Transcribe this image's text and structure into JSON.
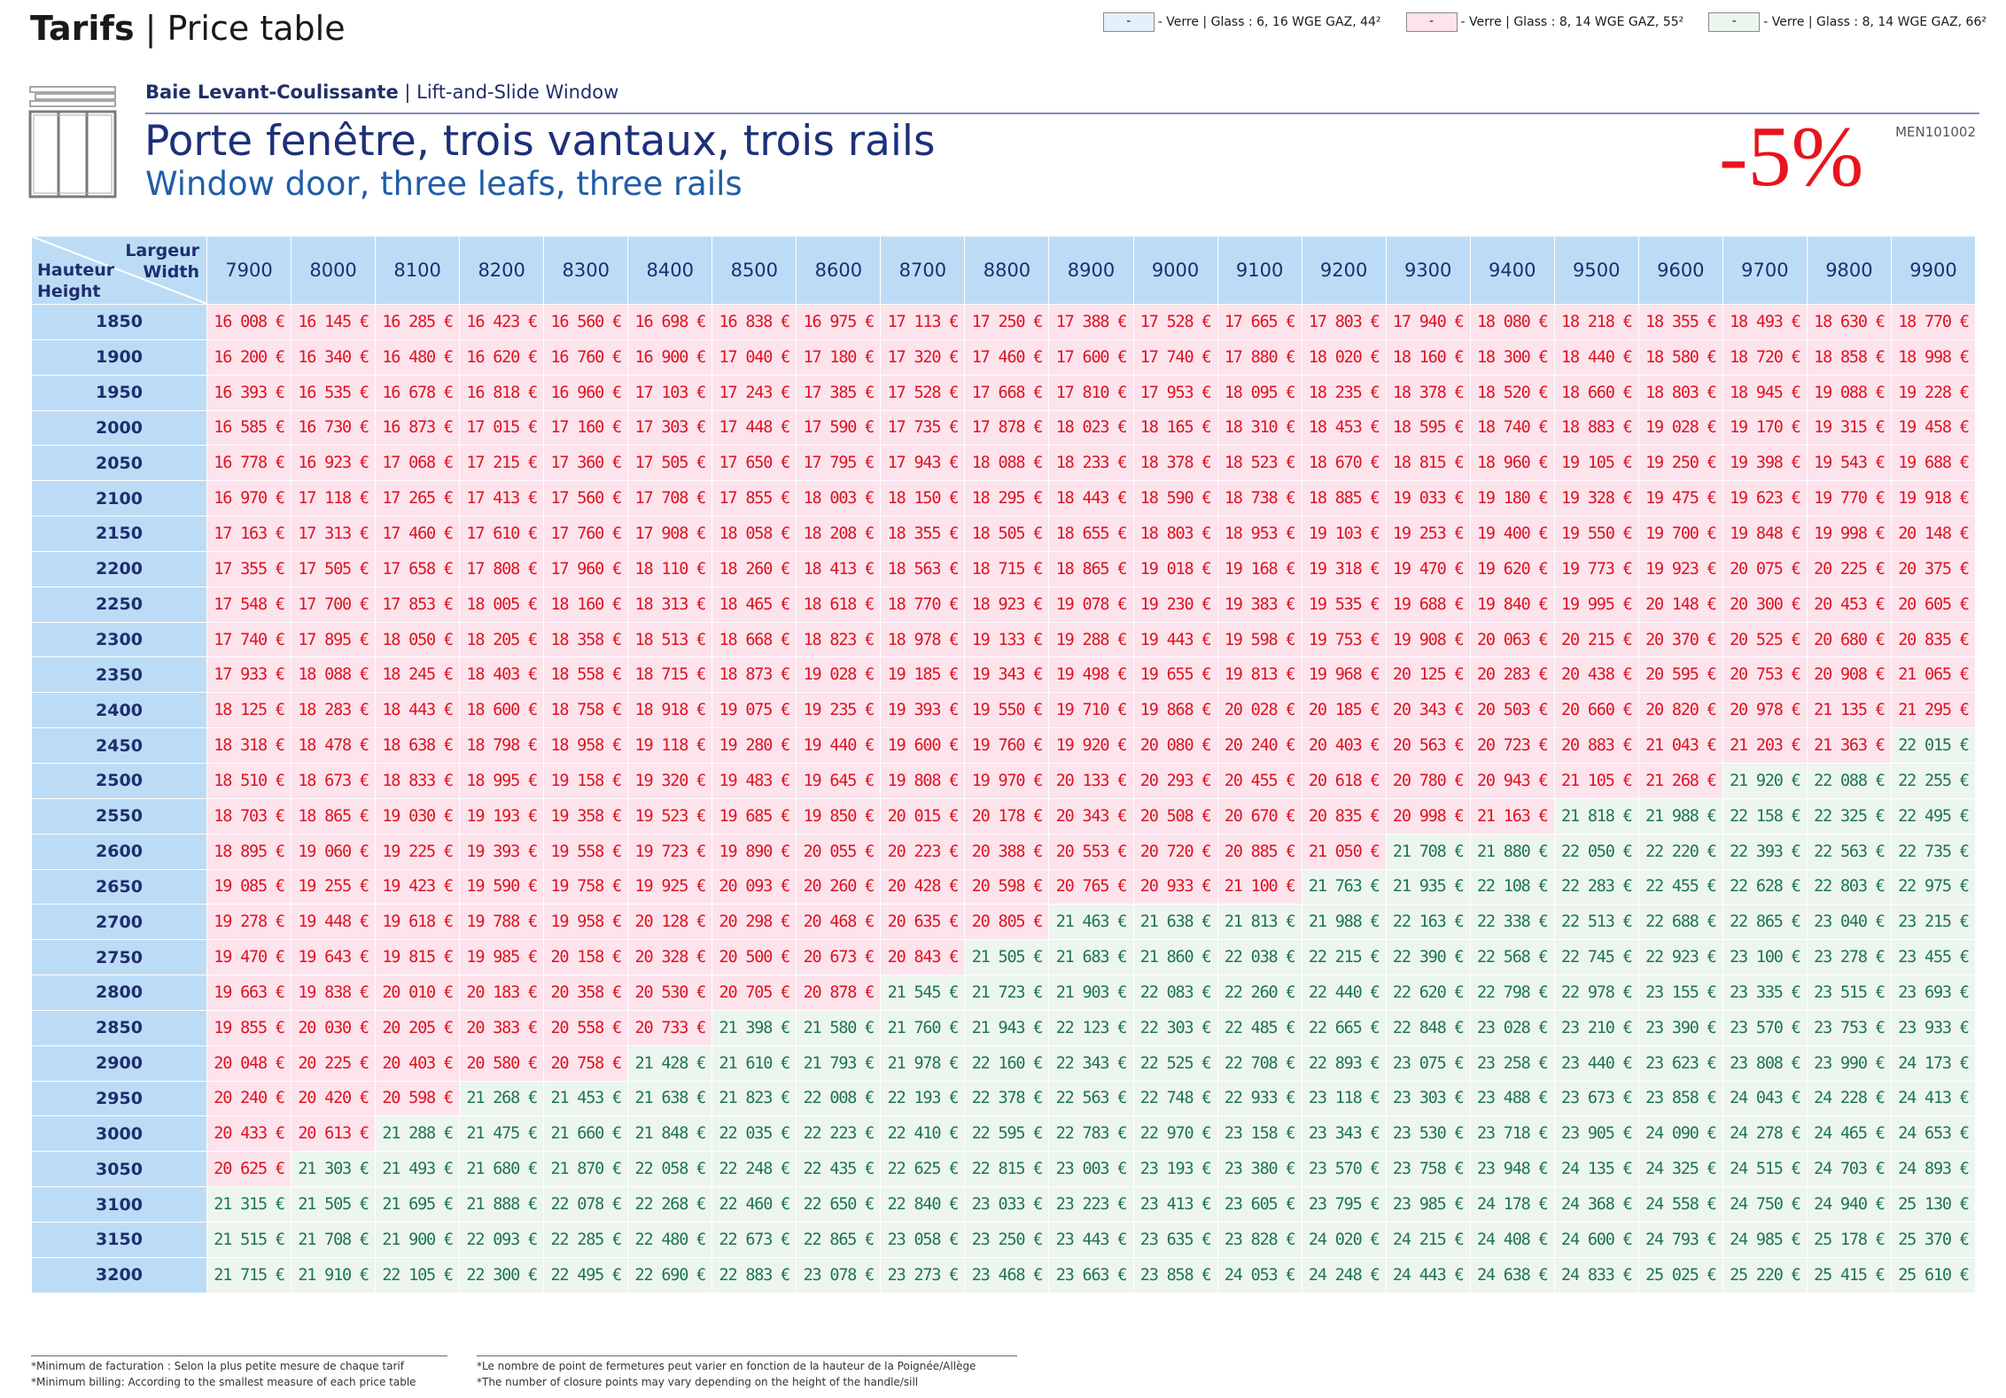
{
  "header": {
    "title_bold": "Tarifs",
    "title_rest": " | Price table"
  },
  "legend": [
    {
      "swatch_label": "-",
      "text": "- Verre | Glass : 6, 16 WGE GAZ, 44²",
      "color": "#e3f1fb"
    },
    {
      "swatch_label": "-",
      "text": "- Verre | Glass : 8, 14 WGE GAZ, 55²",
      "color": "#fde3ec"
    },
    {
      "swatch_label": "-",
      "text": "- Verre | Glass : 8, 14 WGE GAZ, 66²",
      "color": "#edf5ef"
    }
  ],
  "product": {
    "name_bold": "Baie Levant-Coulissante",
    "name_rest": " | Lift-and-Slide Window",
    "title_fr": "Porte fenêtre, trois vantaux, trois rails",
    "title_en": "Window door, three leafs, three rails",
    "reference": "MEN101002",
    "discount": "-5%"
  },
  "table": {
    "col_header_fr": "Largeur",
    "col_header_en": "Width",
    "row_header_fr": "Hauteur",
    "row_header_en": "Height",
    "widths": [
      "7900",
      "8000",
      "8100",
      "8200",
      "8300",
      "8400",
      "8500",
      "8600",
      "8700",
      "8800",
      "8900",
      "9000",
      "9100",
      "9200",
      "9300",
      "9400",
      "9500",
      "9600",
      "9700",
      "9800",
      "9900"
    ],
    "rows": [
      {
        "h": "1850",
        "prices": [
          "16 008 €",
          "16 145 €",
          "16 285 €",
          "16 423 €",
          "16 560 €",
          "16 698 €",
          "16 838 €",
          "16 975 €",
          "17 113 €",
          "17 250 €",
          "17 388 €",
          "17 528 €",
          "17 665 €",
          "17 803 €",
          "17 940 €",
          "18 080 €",
          "18 218 €",
          "18 355 €",
          "18 493 €",
          "18 630 €",
          "18 770 €"
        ],
        "green_from": 21
      },
      {
        "h": "1900",
        "prices": [
          "16 200 €",
          "16 340 €",
          "16 480 €",
          "16 620 €",
          "16 760 €",
          "16 900 €",
          "17 040 €",
          "17 180 €",
          "17 320 €",
          "17 460 €",
          "17 600 €",
          "17 740 €",
          "17 880 €",
          "18 020 €",
          "18 160 €",
          "18 300 €",
          "18 440 €",
          "18 580 €",
          "18 720 €",
          "18 858 €",
          "18 998 €"
        ],
        "green_from": 21
      },
      {
        "h": "1950",
        "prices": [
          "16 393 €",
          "16 535 €",
          "16 678 €",
          "16 818 €",
          "16 960 €",
          "17 103 €",
          "17 243 €",
          "17 385 €",
          "17 528 €",
          "17 668 €",
          "17 810 €",
          "17 953 €",
          "18 095 €",
          "18 235 €",
          "18 378 €",
          "18 520 €",
          "18 660 €",
          "18 803 €",
          "18 945 €",
          "19 088 €",
          "19 228 €"
        ],
        "green_from": 21
      },
      {
        "h": "2000",
        "prices": [
          "16 585 €",
          "16 730 €",
          "16 873 €",
          "17 015 €",
          "17 160 €",
          "17 303 €",
          "17 448 €",
          "17 590 €",
          "17 735 €",
          "17 878 €",
          "18 023 €",
          "18 165 €",
          "18 310 €",
          "18 453 €",
          "18 595 €",
          "18 740 €",
          "18 883 €",
          "19 028 €",
          "19 170 €",
          "19 315 €",
          "19 458 €"
        ],
        "green_from": 21
      },
      {
        "h": "2050",
        "prices": [
          "16 778 €",
          "16 923 €",
          "17 068 €",
          "17 215 €",
          "17 360 €",
          "17 505 €",
          "17 650 €",
          "17 795 €",
          "17 943 €",
          "18 088 €",
          "18 233 €",
          "18 378 €",
          "18 523 €",
          "18 670 €",
          "18 815 €",
          "18 960 €",
          "19 105 €",
          "19 250 €",
          "19 398 €",
          "19 543 €",
          "19 688 €"
        ],
        "green_from": 21
      },
      {
        "h": "2100",
        "prices": [
          "16 970 €",
          "17 118 €",
          "17 265 €",
          "17 413 €",
          "17 560 €",
          "17 708 €",
          "17 855 €",
          "18 003 €",
          "18 150 €",
          "18 295 €",
          "18 443 €",
          "18 590 €",
          "18 738 €",
          "18 885 €",
          "19 033 €",
          "19 180 €",
          "19 328 €",
          "19 475 €",
          "19 623 €",
          "19 770 €",
          "19 918 €"
        ],
        "green_from": 21
      },
      {
        "h": "2150",
        "prices": [
          "17 163 €",
          "17 313 €",
          "17 460 €",
          "17 610 €",
          "17 760 €",
          "17 908 €",
          "18 058 €",
          "18 208 €",
          "18 355 €",
          "18 505 €",
          "18 655 €",
          "18 803 €",
          "18 953 €",
          "19 103 €",
          "19 253 €",
          "19 400 €",
          "19 550 €",
          "19 700 €",
          "19 848 €",
          "19 998 €",
          "20 148 €"
        ],
        "green_from": 21
      },
      {
        "h": "2200",
        "prices": [
          "17 355 €",
          "17 505 €",
          "17 658 €",
          "17 808 €",
          "17 960 €",
          "18 110 €",
          "18 260 €",
          "18 413 €",
          "18 563 €",
          "18 715 €",
          "18 865 €",
          "19 018 €",
          "19 168 €",
          "19 318 €",
          "19 470 €",
          "19 620 €",
          "19 773 €",
          "19 923 €",
          "20 075 €",
          "20 225 €",
          "20 375 €"
        ],
        "green_from": 21
      },
      {
        "h": "2250",
        "prices": [
          "17 548 €",
          "17 700 €",
          "17 853 €",
          "18 005 €",
          "18 160 €",
          "18 313 €",
          "18 465 €",
          "18 618 €",
          "18 770 €",
          "18 923 €",
          "19 078 €",
          "19 230 €",
          "19 383 €",
          "19 535 €",
          "19 688 €",
          "19 840 €",
          "19 995 €",
          "20 148 €",
          "20 300 €",
          "20 453 €",
          "20 605 €"
        ],
        "green_from": 21
      },
      {
        "h": "2300",
        "prices": [
          "17 740 €",
          "17 895 €",
          "18 050 €",
          "18 205 €",
          "18 358 €",
          "18 513 €",
          "18 668 €",
          "18 823 €",
          "18 978 €",
          "19 133 €",
          "19 288 €",
          "19 443 €",
          "19 598 €",
          "19 753 €",
          "19 908 €",
          "20 063 €",
          "20 215 €",
          "20 370 €",
          "20 525 €",
          "20 680 €",
          "20 835 €"
        ],
        "green_from": 21
      },
      {
        "h": "2350",
        "prices": [
          "17 933 €",
          "18 088 €",
          "18 245 €",
          "18 403 €",
          "18 558 €",
          "18 715 €",
          "18 873 €",
          "19 028 €",
          "19 185 €",
          "19 343 €",
          "19 498 €",
          "19 655 €",
          "19 813 €",
          "19 968 €",
          "20 125 €",
          "20 283 €",
          "20 438 €",
          "20 595 €",
          "20 753 €",
          "20 908 €",
          "21 065 €"
        ],
        "green_from": 21
      },
      {
        "h": "2400",
        "prices": [
          "18 125 €",
          "18 283 €",
          "18 443 €",
          "18 600 €",
          "18 758 €",
          "18 918 €",
          "19 075 €",
          "19 235 €",
          "19 393 €",
          "19 550 €",
          "19 710 €",
          "19 868 €",
          "20 028 €",
          "20 185 €",
          "20 343 €",
          "20 503 €",
          "20 660 €",
          "20 820 €",
          "20 978 €",
          "21 135 €",
          "21 295 €"
        ],
        "green_from": 21
      },
      {
        "h": "2450",
        "prices": [
          "18 318 €",
          "18 478 €",
          "18 638 €",
          "18 798 €",
          "18 958 €",
          "19 118 €",
          "19 280 €",
          "19 440 €",
          "19 600 €",
          "19 760 €",
          "19 920 €",
          "20 080 €",
          "20 240 €",
          "20 403 €",
          "20 563 €",
          "20 723 €",
          "20 883 €",
          "21 043 €",
          "21 203 €",
          "21 363 €",
          "22 015 €"
        ],
        "green_from": 20
      },
      {
        "h": "2500",
        "prices": [
          "18 510 €",
          "18 673 €",
          "18 833 €",
          "18 995 €",
          "19 158 €",
          "19 320 €",
          "19 483 €",
          "19 645 €",
          "19 808 €",
          "19 970 €",
          "20 133 €",
          "20 293 €",
          "20 455 €",
          "20 618 €",
          "20 780 €",
          "20 943 €",
          "21 105 €",
          "21 268 €",
          "21 920 €",
          "22 088 €",
          "22 255 €"
        ],
        "green_from": 18
      },
      {
        "h": "2550",
        "prices": [
          "18 703 €",
          "18 865 €",
          "19 030 €",
          "19 193 €",
          "19 358 €",
          "19 523 €",
          "19 685 €",
          "19 850 €",
          "20 015 €",
          "20 178 €",
          "20 343 €",
          "20 508 €",
          "20 670 €",
          "20 835 €",
          "20 998 €",
          "21 163 €",
          "21 818 €",
          "21 988 €",
          "22 158 €",
          "22 325 €",
          "22 495 €"
        ],
        "green_from": 16
      },
      {
        "h": "2600",
        "prices": [
          "18 895 €",
          "19 060 €",
          "19 225 €",
          "19 393 €",
          "19 558 €",
          "19 723 €",
          "19 890 €",
          "20 055 €",
          "20 223 €",
          "20 388 €",
          "20 553 €",
          "20 720 €",
          "20 885 €",
          "21 050 €",
          "21 708 €",
          "21 880 €",
          "22 050 €",
          "22 220 €",
          "22 393 €",
          "22 563 €",
          "22 735 €"
        ],
        "green_from": 14
      },
      {
        "h": "2650",
        "prices": [
          "19 085 €",
          "19 255 €",
          "19 423 €",
          "19 590 €",
          "19 758 €",
          "19 925 €",
          "20 093 €",
          "20 260 €",
          "20 428 €",
          "20 598 €",
          "20 765 €",
          "20 933 €",
          "21 100 €",
          "21 763 €",
          "21 935 €",
          "22 108 €",
          "22 283 €",
          "22 455 €",
          "22 628 €",
          "22 803 €",
          "22 975 €"
        ],
        "green_from": 13
      },
      {
        "h": "2700",
        "prices": [
          "19 278 €",
          "19 448 €",
          "19 618 €",
          "19 788 €",
          "19 958 €",
          "20 128 €",
          "20 298 €",
          "20 468 €",
          "20 635 €",
          "20 805 €",
          "21 463 €",
          "21 638 €",
          "21 813 €",
          "21 988 €",
          "22 163 €",
          "22 338 €",
          "22 513 €",
          "22 688 €",
          "22 865 €",
          "23 040 €",
          "23 215 €"
        ],
        "green_from": 10
      },
      {
        "h": "2750",
        "prices": [
          "19 470 €",
          "19 643 €",
          "19 815 €",
          "19 985 €",
          "20 158 €",
          "20 328 €",
          "20 500 €",
          "20 673 €",
          "20 843 €",
          "21 505 €",
          "21 683 €",
          "21 860 €",
          "22 038 €",
          "22 215 €",
          "22 390 €",
          "22 568 €",
          "22 745 €",
          "22 923 €",
          "23 100 €",
          "23 278 €",
          "23 455 €"
        ],
        "green_from": 9
      },
      {
        "h": "2800",
        "prices": [
          "19 663 €",
          "19 838 €",
          "20 010 €",
          "20 183 €",
          "20 358 €",
          "20 530 €",
          "20 705 €",
          "20 878 €",
          "21 545 €",
          "21 723 €",
          "21 903 €",
          "22 083 €",
          "22 260 €",
          "22 440 €",
          "22 620 €",
          "22 798 €",
          "22 978 €",
          "23 155 €",
          "23 335 €",
          "23 515 €",
          "23 693 €"
        ],
        "green_from": 8
      },
      {
        "h": "2850",
        "prices": [
          "19 855 €",
          "20 030 €",
          "20 205 €",
          "20 383 €",
          "20 558 €",
          "20 733 €",
          "21 398 €",
          "21 580 €",
          "21 760 €",
          "21 943 €",
          "22 123 €",
          "22 303 €",
          "22 485 €",
          "22 665 €",
          "22 848 €",
          "23 028 €",
          "23 210 €",
          "23 390 €",
          "23 570 €",
          "23 753 €",
          "23 933 €"
        ],
        "green_from": 6
      },
      {
        "h": "2900",
        "prices": [
          "20 048 €",
          "20 225 €",
          "20 403 €",
          "20 580 €",
          "20 758 €",
          "21 428 €",
          "21 610 €",
          "21 793 €",
          "21 978 €",
          "22 160 €",
          "22 343 €",
          "22 525 €",
          "22 708 €",
          "22 893 €",
          "23 075 €",
          "23 258 €",
          "23 440 €",
          "23 623 €",
          "23 808 €",
          "23 990 €",
          "24 173 €"
        ],
        "green_from": 5
      },
      {
        "h": "2950",
        "prices": [
          "20 240 €",
          "20 420 €",
          "20 598 €",
          "21 268 €",
          "21 453 €",
          "21 638 €",
          "21 823 €",
          "22 008 €",
          "22 193 €",
          "22 378 €",
          "22 563 €",
          "22 748 €",
          "22 933 €",
          "23 118 €",
          "23 303 €",
          "23 488 €",
          "23 673 €",
          "23 858 €",
          "24 043 €",
          "24 228 €",
          "24 413 €"
        ],
        "green_from": 3
      },
      {
        "h": "3000",
        "prices": [
          "20 433 €",
          "20 613 €",
          "21 288 €",
          "21 475 €",
          "21 660 €",
          "21 848 €",
          "22 035 €",
          "22 223 €",
          "22 410 €",
          "22 595 €",
          "22 783 €",
          "22 970 €",
          "23 158 €",
          "23 343 €",
          "23 530 €",
          "23 718 €",
          "23 905 €",
          "24 090 €",
          "24 278 €",
          "24 465 €",
          "24 653 €"
        ],
        "green_from": 2
      },
      {
        "h": "3050",
        "prices": [
          "20 625 €",
          "21 303 €",
          "21 493 €",
          "21 680 €",
          "21 870 €",
          "22 058 €",
          "22 248 €",
          "22 435 €",
          "22 625 €",
          "22 815 €",
          "23 003 €",
          "23 193 €",
          "23 380 €",
          "23 570 €",
          "23 758 €",
          "23 948 €",
          "24 135 €",
          "24 325 €",
          "24 515 €",
          "24 703 €",
          "24 893 €"
        ],
        "green_from": 1
      },
      {
        "h": "3100",
        "prices": [
          "21 315 €",
          "21 505 €",
          "21 695 €",
          "21 888 €",
          "22 078 €",
          "22 268 €",
          "22 460 €",
          "22 650 €",
          "22 840 €",
          "23 033 €",
          "23 223 €",
          "23 413 €",
          "23 605 €",
          "23 795 €",
          "23 985 €",
          "24 178 €",
          "24 368 €",
          "24 558 €",
          "24 750 €",
          "24 940 €",
          "25 130 €"
        ],
        "green_from": 0
      },
      {
        "h": "3150",
        "prices": [
          "21 515 €",
          "21 708 €",
          "21 900 €",
          "22 093 €",
          "22 285 €",
          "22 480 €",
          "22 673 €",
          "22 865 €",
          "23 058 €",
          "23 250 €",
          "23 443 €",
          "23 635 €",
          "23 828 €",
          "24 020 €",
          "24 215 €",
          "24 408 €",
          "24 600 €",
          "24 793 €",
          "24 985 €",
          "25 178 €",
          "25 370 €"
        ],
        "green_from": 0
      },
      {
        "h": "3200",
        "prices": [
          "21 715 €",
          "21 910 €",
          "22 105 €",
          "22 300 €",
          "22 495 €",
          "22 690 €",
          "22 883 €",
          "23 078 €",
          "23 273 €",
          "23 468 €",
          "23 663 €",
          "23 858 €",
          "24 053 €",
          "24 248 €",
          "24 443 €",
          "24 638 €",
          "24 833 €",
          "25 025 €",
          "25 220 €",
          "25 415 €",
          "25 610 €"
        ],
        "green_from": 0
      }
    ]
  },
  "footer": {
    "note1_fr": "*Minimum de facturation : Selon la plus petite mesure de chaque tarif",
    "note1_en": "*Minimum billing: According to the smallest measure of each price table",
    "note2_fr": "*Le nombre de point de fermetures peut varier en fonction de la hauteur de la Poignée/Allège",
    "note2_en": "*The number of closure points may vary depending on the height of the handle/sill"
  },
  "colors": {
    "red_text": "#dd1422",
    "pink_cell": "#fde3ec",
    "green_text": "#1d7553",
    "green_cell": "#edf5ef",
    "header_blue": "#bcdcf6",
    "navy": "#1e2f7a"
  }
}
